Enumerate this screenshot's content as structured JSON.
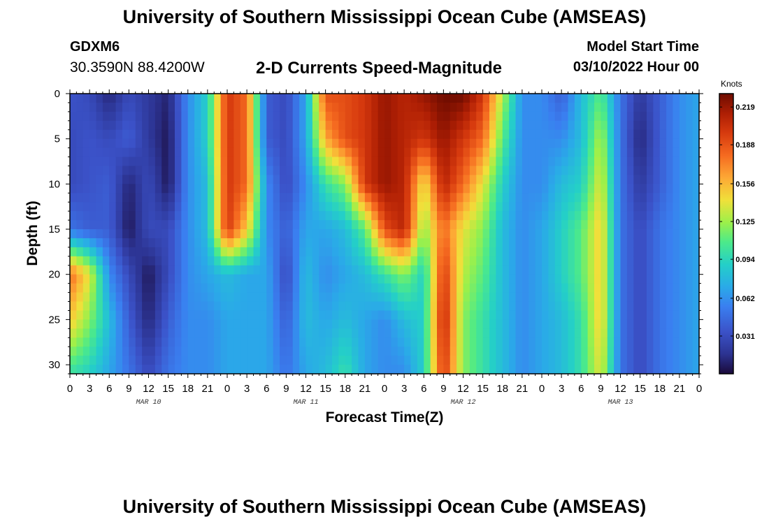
{
  "header": {
    "title": "University of Southern Mississippi Ocean Cube (AMSEAS)",
    "station": "GDXM6",
    "coords": "30.3590N  88.4200W",
    "subtitle": "2-D Currents Speed-Magnitude",
    "model_start_label": "Model Start Time",
    "model_start_value": "03/10/2022 Hour 00"
  },
  "footer": {
    "title": "University of Southern Mississippi Ocean Cube (AMSEAS)"
  },
  "chart_data": {
    "type": "heatmap",
    "title": "2-D Currents Speed-Magnitude",
    "xlabel": "Forecast Time(Z)",
    "ylabel": "Depth (ft)",
    "x_tick_labels": [
      "0",
      "3",
      "6",
      "9",
      "12",
      "15",
      "18",
      "21",
      "0",
      "3",
      "6",
      "9",
      "12",
      "15",
      "18",
      "21",
      "0",
      "3",
      "6",
      "9",
      "12",
      "15",
      "18",
      "21",
      "0",
      "3",
      "6",
      "9",
      "12",
      "15",
      "18",
      "21",
      "0"
    ],
    "x_range_hours": [
      0,
      96
    ],
    "date_labels": [
      {
        "label": "MAR 10",
        "hour": 12
      },
      {
        "label": "MAR 11",
        "hour": 36
      },
      {
        "label": "MAR 12",
        "hour": 60
      },
      {
        "label": "MAR 13",
        "hour": 84
      }
    ],
    "y_tick_labels": [
      "0",
      "5",
      "10",
      "15",
      "20",
      "25",
      "30"
    ],
    "y_range_ft": [
      0,
      31
    ],
    "colorbar": {
      "unit": "Knots",
      "min": 0,
      "max": 0.23,
      "ticks": [
        "0.219",
        "0.188",
        "0.156",
        "0.125",
        "0.094",
        "0.062",
        "0.031"
      ]
    },
    "grid_hours": [
      0,
      3,
      6,
      9,
      12,
      15,
      18,
      21,
      24,
      27,
      30,
      33,
      36,
      39,
      42,
      45,
      48,
      51,
      54,
      57,
      60,
      63,
      66,
      69,
      72,
      75,
      78,
      81,
      84,
      87,
      90,
      93,
      96
    ],
    "grid_depths_ft": [
      0,
      5,
      10,
      15,
      20,
      25,
      31
    ],
    "values": [
      [
        0.035,
        0.03,
        0.01,
        0.03,
        0.02,
        0.01,
        0.06,
        0.09,
        0.2,
        0.18,
        0.04,
        0.03,
        0.07,
        0.19,
        0.19,
        0.2,
        0.22,
        0.21,
        0.22,
        0.23,
        0.23,
        0.2,
        0.13,
        0.06,
        0.06,
        0.04,
        0.08,
        0.11,
        0.05,
        0.02,
        0.04,
        0.06,
        0.07
      ],
      [
        0.03,
        0.035,
        0.03,
        0.04,
        0.02,
        0.005,
        0.06,
        0.09,
        0.2,
        0.18,
        0.04,
        0.03,
        0.07,
        0.16,
        0.19,
        0.2,
        0.22,
        0.21,
        0.2,
        0.22,
        0.2,
        0.18,
        0.11,
        0.06,
        0.06,
        0.06,
        0.08,
        0.13,
        0.05,
        0.01,
        0.04,
        0.06,
        0.07
      ],
      [
        0.03,
        0.035,
        0.04,
        0.01,
        0.03,
        0.005,
        0.06,
        0.08,
        0.2,
        0.18,
        0.06,
        0.03,
        0.06,
        0.1,
        0.12,
        0.2,
        0.22,
        0.21,
        0.14,
        0.21,
        0.18,
        0.14,
        0.09,
        0.06,
        0.06,
        0.08,
        0.09,
        0.14,
        0.05,
        0.02,
        0.04,
        0.06,
        0.07
      ],
      [
        0.05,
        0.04,
        0.04,
        0.005,
        0.03,
        0.03,
        0.06,
        0.08,
        0.2,
        0.15,
        0.06,
        0.04,
        0.07,
        0.07,
        0.08,
        0.11,
        0.19,
        0.21,
        0.12,
        0.18,
        0.14,
        0.12,
        0.08,
        0.06,
        0.07,
        0.09,
        0.11,
        0.15,
        0.05,
        0.03,
        0.05,
        0.06,
        0.07
      ],
      [
        0.18,
        0.14,
        0.06,
        0.03,
        0.005,
        0.03,
        0.06,
        0.07,
        0.08,
        0.07,
        0.07,
        0.03,
        0.08,
        0.06,
        0.07,
        0.08,
        0.1,
        0.12,
        0.09,
        0.2,
        0.13,
        0.11,
        0.08,
        0.06,
        0.07,
        0.09,
        0.11,
        0.15,
        0.05,
        0.03,
        0.05,
        0.06,
        0.07
      ],
      [
        0.15,
        0.12,
        0.08,
        0.04,
        0.01,
        0.04,
        0.06,
        0.06,
        0.07,
        0.07,
        0.07,
        0.04,
        0.08,
        0.07,
        0.08,
        0.07,
        0.06,
        0.08,
        0.09,
        0.21,
        0.12,
        0.1,
        0.08,
        0.06,
        0.07,
        0.08,
        0.1,
        0.15,
        0.05,
        0.03,
        0.05,
        0.06,
        0.07
      ],
      [
        0.1,
        0.09,
        0.07,
        0.05,
        0.03,
        0.05,
        0.06,
        0.06,
        0.07,
        0.07,
        0.07,
        0.05,
        0.07,
        0.08,
        0.1,
        0.07,
        0.06,
        0.06,
        0.09,
        0.2,
        0.12,
        0.1,
        0.08,
        0.06,
        0.07,
        0.08,
        0.1,
        0.14,
        0.05,
        0.03,
        0.05,
        0.06,
        0.07
      ]
    ]
  }
}
